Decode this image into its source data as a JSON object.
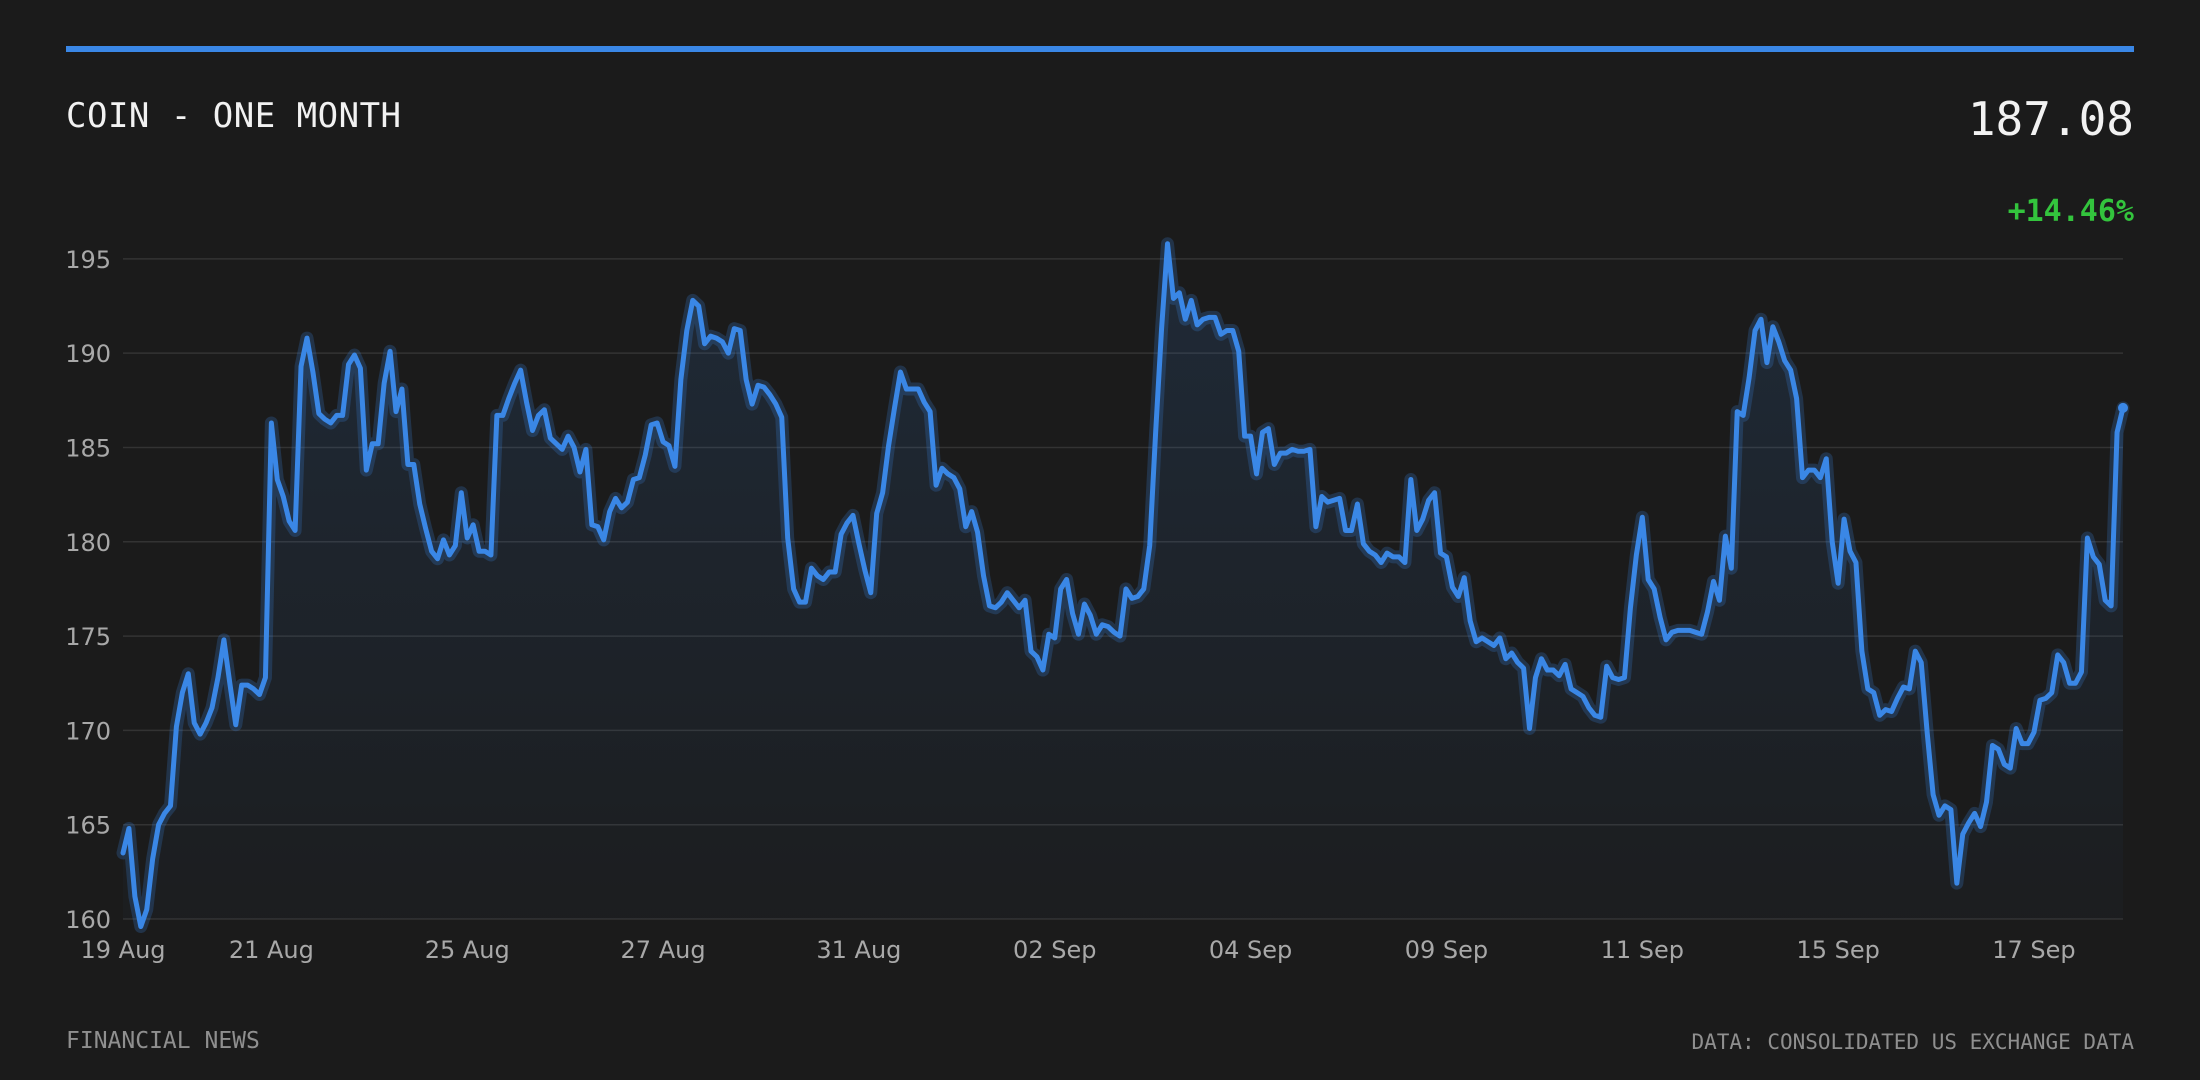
{
  "header": {
    "title": "COIN - ONE MONTH",
    "price": "187.08",
    "change": "+14.46%"
  },
  "footer": {
    "source_left": "FINANCIAL NEWS",
    "source_right": "DATA: CONSOLIDATED US EXCHANGE DATA"
  },
  "colors": {
    "line": "#3a87e6",
    "positive": "#33c43d",
    "background": "#1b1b1b",
    "grid": "#333333",
    "tick_text": "#a8a8a8"
  },
  "chart_data": {
    "type": "area",
    "title": "COIN - ONE MONTH",
    "xlabel": "",
    "ylabel": "",
    "ylim": [
      160,
      196
    ],
    "grid": true,
    "y_ticks": [
      160,
      165,
      170,
      175,
      180,
      185,
      190,
      195
    ],
    "x_ticks": [
      {
        "label": "19 Aug",
        "index": 0
      },
      {
        "label": "21 Aug",
        "index": 25
      },
      {
        "label": "25 Aug",
        "index": 58
      },
      {
        "label": "27 Aug",
        "index": 91
      },
      {
        "label": "31 Aug",
        "index": 124
      },
      {
        "label": "02 Sep",
        "index": 157
      },
      {
        "label": "04 Sep",
        "index": 190
      },
      {
        "label": "09 Sep",
        "index": 223
      },
      {
        "label": "11 Sep",
        "index": 256
      },
      {
        "label": "15 Sep",
        "index": 289
      },
      {
        "label": "17 Sep",
        "index": 322
      }
    ],
    "series": [
      {
        "values": [
          163.5,
          164.8,
          161.2,
          159.6,
          160.5,
          163.2,
          165.0,
          165.6,
          166.0,
          170.2,
          172.0,
          173.0,
          170.4,
          169.8,
          170.4,
          171.2,
          172.8,
          174.8,
          172.5,
          170.3,
          172.4,
          172.4,
          172.2,
          171.9,
          172.8,
          186.3,
          183.3,
          182.4,
          181.1,
          180.6,
          189.3,
          190.8,
          189.0,
          186.8,
          186.5,
          186.3,
          186.7,
          186.7,
          189.4,
          189.9,
          189.2,
          183.8,
          185.2,
          185.2,
          188.4,
          190.1,
          186.9,
          188.1,
          184.1,
          184.1,
          182.0,
          180.7,
          179.5,
          179.1,
          180.1,
          179.3,
          179.8,
          182.6,
          180.2,
          180.9,
          179.5,
          179.5,
          179.3,
          186.7,
          186.7,
          187.6,
          188.4,
          189.1,
          187.4,
          185.9,
          186.7,
          187.0,
          185.5,
          185.2,
          184.9,
          185.6,
          185.0,
          183.7,
          184.9,
          180.9,
          180.8,
          180.1,
          181.6,
          182.3,
          181.8,
          182.1,
          183.3,
          183.4,
          184.6,
          186.2,
          186.3,
          185.3,
          185.1,
          184.0,
          188.6,
          191.2,
          192.8,
          192.5,
          190.5,
          190.9,
          190.8,
          190.6,
          190.0,
          191.3,
          191.2,
          188.6,
          187.3,
          188.3,
          188.2,
          187.8,
          187.3,
          186.6,
          180.2,
          177.5,
          176.8,
          176.8,
          178.6,
          178.2,
          178.0,
          178.4,
          178.4,
          180.4,
          181.0,
          181.4,
          179.9,
          178.5,
          177.3,
          181.5,
          182.6,
          185.1,
          187.1,
          189.0,
          188.1,
          188.1,
          188.1,
          187.4,
          186.9,
          183.0,
          183.9,
          183.6,
          183.4,
          182.8,
          180.8,
          181.6,
          180.5,
          178.2,
          176.6,
          176.5,
          176.8,
          177.3,
          176.9,
          176.5,
          176.9,
          174.2,
          173.9,
          173.2,
          175.1,
          174.9,
          177.5,
          178.0,
          176.2,
          175.1,
          176.7,
          176.1,
          175.1,
          175.6,
          175.5,
          175.2,
          175.0,
          177.5,
          177.0,
          177.1,
          177.5,
          179.8,
          185.8,
          191.3,
          195.8,
          192.9,
          193.2,
          191.8,
          192.8,
          191.5,
          191.8,
          191.9,
          191.9,
          191.0,
          191.2,
          191.2,
          190.1,
          185.6,
          185.6,
          183.6,
          185.8,
          186.0,
          184.1,
          184.7,
          184.7,
          184.9,
          184.8,
          184.8,
          184.9,
          180.8,
          182.4,
          182.1,
          182.2,
          182.3,
          180.6,
          180.6,
          182.0,
          179.9,
          179.5,
          179.3,
          178.9,
          179.4,
          179.2,
          179.2,
          178.9,
          183.3,
          180.6,
          181.2,
          182.2,
          182.6,
          179.4,
          179.2,
          177.6,
          177.1,
          178.1,
          175.8,
          174.7,
          174.9,
          174.7,
          174.5,
          174.9,
          173.8,
          174.1,
          173.6,
          173.3,
          170.1,
          172.8,
          173.8,
          173.2,
          173.2,
          172.9,
          173.5,
          172.2,
          172.0,
          171.8,
          171.2,
          170.8,
          170.7,
          173.4,
          172.8,
          172.7,
          172.8,
          176.5,
          179.3,
          181.3,
          178.0,
          177.5,
          176.0,
          174.8,
          175.2,
          175.3,
          175.3,
          175.3,
          175.2,
          175.1,
          176.3,
          177.9,
          176.9,
          180.3,
          178.6,
          186.9,
          186.7,
          188.7,
          191.2,
          191.8,
          189.5,
          191.4,
          190.6,
          189.6,
          189.1,
          187.6,
          183.4,
          183.8,
          183.8,
          183.4,
          184.4,
          180.0,
          177.8,
          181.2,
          179.5,
          178.9,
          174.2,
          172.2,
          172.0,
          170.8,
          171.1,
          171.0,
          171.7,
          172.3,
          172.2,
          174.2,
          173.6,
          169.9,
          166.6,
          165.5,
          166.0,
          165.8,
          161.9,
          164.5,
          165.1,
          165.6,
          164.9,
          166.2,
          169.2,
          169.0,
          168.2,
          168.0,
          170.1,
          169.3,
          169.3,
          169.9,
          171.6,
          171.7,
          172.0,
          174.0,
          173.6,
          172.5,
          172.5,
          173.1,
          180.2,
          179.2,
          178.8,
          176.9,
          176.6,
          185.8,
          187.1
        ]
      }
    ]
  }
}
